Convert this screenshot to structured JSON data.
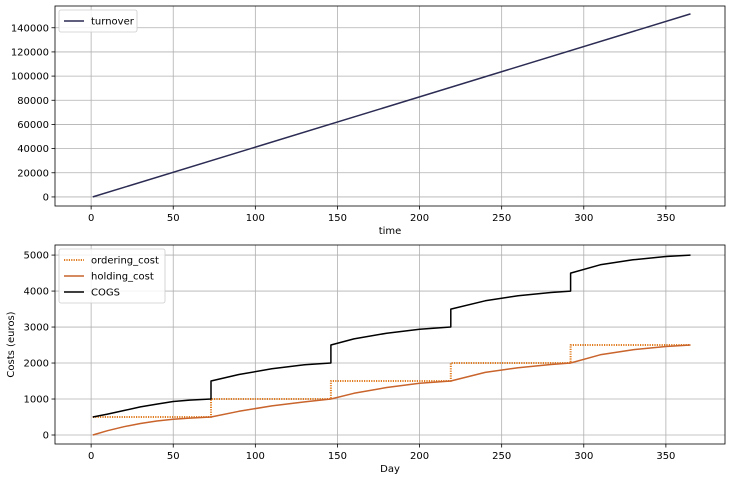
{
  "chart_data": [
    {
      "type": "line",
      "xlabel": "time",
      "ylabel": "",
      "xlim": [
        -22,
        386
      ],
      "ylim": [
        -7500,
        158000
      ],
      "x_ticks": [
        0,
        50,
        100,
        150,
        200,
        250,
        300,
        350
      ],
      "y_ticks": [
        0,
        20000,
        40000,
        60000,
        80000,
        100000,
        120000,
        140000
      ],
      "grid": true,
      "legend": "top-left",
      "series": [
        {
          "name": "turnover",
          "color": "#2c2c54",
          "x": [
            1,
            365
          ],
          "y": [
            0,
            151500
          ]
        }
      ]
    },
    {
      "type": "line",
      "xlabel": "Day",
      "ylabel": "Costs (euros)",
      "xlim": [
        -22,
        386
      ],
      "ylim": [
        -250,
        5280
      ],
      "x_ticks": [
        0,
        50,
        100,
        150,
        200,
        250,
        300,
        350
      ],
      "y_ticks": [
        0,
        1000,
        2000,
        3000,
        4000,
        5000
      ],
      "grid": true,
      "legend": "top-left",
      "series": [
        {
          "name": "ordering_cost",
          "color": "#e07b1f",
          "style": "dotted",
          "x": [
            1,
            73,
            73,
            146,
            146,
            219,
            219,
            292,
            292,
            365
          ],
          "y": [
            500,
            500,
            1000,
            1000,
            1500,
            1500,
            2000,
            2000,
            2500,
            2500
          ]
        },
        {
          "name": "holding_cost",
          "color": "#c8642c",
          "x": [
            1,
            10,
            20,
            30,
            40,
            50,
            60,
            73,
            90,
            110,
            130,
            146,
            160,
            180,
            200,
            219,
            240,
            260,
            280,
            292,
            310,
            330,
            350,
            365
          ],
          "y": [
            0,
            120,
            230,
            320,
            390,
            440,
            470,
            500,
            660,
            810,
            920,
            1000,
            1160,
            1320,
            1440,
            1500,
            1740,
            1870,
            1960,
            2000,
            2230,
            2370,
            2460,
            2500
          ]
        },
        {
          "name": "COGS",
          "color": "#000000",
          "x": [
            1,
            10,
            20,
            30,
            40,
            50,
            60,
            73,
            73,
            90,
            110,
            130,
            146,
            146,
            160,
            180,
            200,
            219,
            219,
            240,
            260,
            280,
            292,
            292,
            310,
            330,
            350,
            365
          ],
          "y": [
            500,
            580,
            680,
            780,
            860,
            930,
            970,
            1000,
            1500,
            1680,
            1840,
            1950,
            2000,
            2500,
            2670,
            2830,
            2940,
            3000,
            3500,
            3730,
            3870,
            3960,
            4000,
            4500,
            4730,
            4870,
            4960,
            5000
          ]
        }
      ]
    }
  ]
}
